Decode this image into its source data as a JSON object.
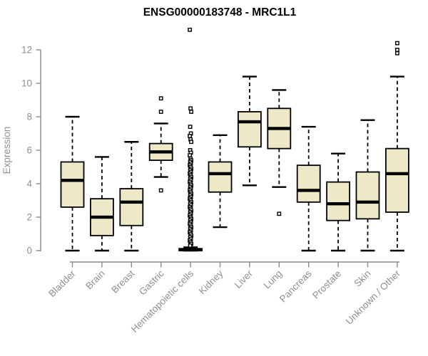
{
  "page": {
    "background_color": "#ffffff"
  },
  "chart_data": {
    "type": "boxplot",
    "title": "ENSG00000183748 - MRC1L1",
    "xlabel": "",
    "ylabel": "Expression",
    "ylim": [
      0,
      12
    ],
    "yticks": [
      0,
      2,
      4,
      6,
      8,
      10,
      12
    ],
    "grid": false,
    "legend": "none",
    "categories": [
      "Bladder",
      "Brain",
      "Breast",
      "Gastric",
      "Hematopoietic cells",
      "Kidney",
      "Liver",
      "Lung",
      "Pancreas",
      "Prostate",
      "Skin",
      "Unknown / Other"
    ],
    "series": [
      {
        "name": "Bladder",
        "whisker_low": 0.0,
        "q1": 2.6,
        "median": 4.2,
        "q3": 5.3,
        "whisker_high": 8.0,
        "outliers": []
      },
      {
        "name": "Brain",
        "whisker_low": 0.0,
        "q1": 0.9,
        "median": 2.0,
        "q3": 3.1,
        "whisker_high": 5.6,
        "outliers": []
      },
      {
        "name": "Breast",
        "whisker_low": 0.0,
        "q1": 1.5,
        "median": 2.9,
        "q3": 3.7,
        "whisker_high": 6.5,
        "outliers": []
      },
      {
        "name": "Gastric",
        "whisker_low": 4.4,
        "q1": 5.4,
        "median": 5.9,
        "q3": 6.4,
        "whisker_high": 7.6,
        "outliers": [
          9.1,
          8.3,
          3.6
        ]
      },
      {
        "name": "Hematopoietic cells",
        "whisker_low": 0.0,
        "q1": 0.0,
        "median": 0.05,
        "q3": 0.12,
        "whisker_high": 0.2,
        "outliers": [
          13.2,
          8.5,
          8.3,
          7.4,
          7.0,
          6.85,
          6.65,
          6.5,
          6.0,
          5.85,
          5.7,
          5.5,
          5.4,
          5.3,
          5.2,
          5.1,
          5.0,
          4.9,
          4.8,
          4.7,
          4.6,
          4.5,
          4.4,
          4.3,
          4.2,
          4.1,
          4.0,
          3.9,
          3.8,
          3.7,
          3.6,
          3.5,
          3.4,
          3.3,
          3.2,
          3.1,
          3.0,
          2.9,
          2.8,
          2.7,
          2.6,
          2.5,
          2.4,
          2.3,
          2.2,
          2.1,
          2.0,
          1.9,
          1.8,
          1.7,
          1.6,
          1.5,
          1.4,
          1.3,
          1.2,
          1.1,
          1.0,
          0.9,
          0.8,
          0.7,
          0.6,
          0.5,
          0.4,
          0.3
        ]
      },
      {
        "name": "Kidney",
        "whisker_low": 1.4,
        "q1": 3.5,
        "median": 4.6,
        "q3": 5.3,
        "whisker_high": 6.9,
        "outliers": []
      },
      {
        "name": "Liver",
        "whisker_low": 3.9,
        "q1": 6.2,
        "median": 7.7,
        "q3": 8.3,
        "whisker_high": 10.4,
        "outliers": []
      },
      {
        "name": "Lung",
        "whisker_low": 3.8,
        "q1": 6.1,
        "median": 7.3,
        "q3": 8.5,
        "whisker_high": 9.6,
        "outliers": [
          2.2
        ]
      },
      {
        "name": "Pancreas",
        "whisker_low": 0.0,
        "q1": 2.9,
        "median": 3.6,
        "q3": 5.1,
        "whisker_high": 7.4,
        "outliers": []
      },
      {
        "name": "Prostate",
        "whisker_low": 0.0,
        "q1": 1.8,
        "median": 2.8,
        "q3": 4.1,
        "whisker_high": 5.8,
        "outliers": []
      },
      {
        "name": "Skin",
        "whisker_low": 0.0,
        "q1": 1.9,
        "median": 2.9,
        "q3": 4.7,
        "whisker_high": 7.8,
        "outliers": []
      },
      {
        "name": "Unknown / Other",
        "whisker_low": 0.0,
        "q1": 2.3,
        "median": 4.6,
        "q3": 6.1,
        "whisker_high": 10.4,
        "outliers": [
          12.4,
          12.0,
          11.8
        ]
      }
    ],
    "colors": {
      "box_fill": "#EDE8C6",
      "box_stroke": "#000000",
      "median": "#000000",
      "whisker": "#000000",
      "outlier_fill": "#ffffff",
      "outlier_stroke": "#000000",
      "axis": "#8A8A8A",
      "axis_text": "#909090",
      "title": "#000000"
    }
  }
}
